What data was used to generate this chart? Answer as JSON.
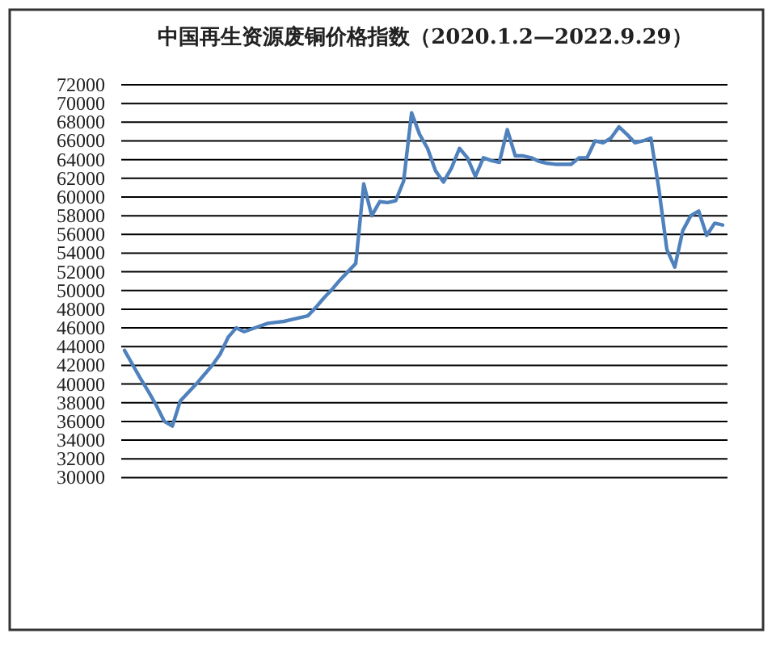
{
  "chart_data": {
    "type": "line",
    "title": "中国再生资源废铜价格指数（2020.1.2—2022.9.29）",
    "categories": [
      null,
      null,
      null,
      null,
      null,
      null,
      null,
      null,
      null,
      null,
      null,
      null,
      null,
      null,
      null,
      null,
      null,
      null,
      null,
      null,
      null,
      null,
      null,
      null,
      null,
      null,
      null,
      null,
      null,
      null,
      null,
      null,
      null,
      null,
      null,
      null,
      null,
      null,
      null,
      null,
      null,
      null,
      null,
      null,
      null,
      null,
      null,
      null,
      null,
      null,
      null,
      null,
      null,
      null,
      null,
      null,
      null,
      null,
      null,
      null,
      null,
      null,
      null,
      null,
      null,
      null,
      null,
      null,
      null,
      null,
      null,
      null,
      null,
      null,
      null,
      null
    ],
    "values": [
      43600,
      42100,
      40600,
      39200,
      37700,
      36000,
      35500,
      38200,
      39100,
      40000,
      41000,
      42000,
      43200,
      45000,
      46000,
      45600,
      45900,
      46200,
      46500,
      46600,
      46700,
      46900,
      47100,
      47300,
      48200,
      49200,
      50100,
      51100,
      52000,
      52900,
      61400,
      58000,
      59500,
      59400,
      59600,
      61700,
      69000,
      66700,
      65200,
      62800,
      61600,
      63100,
      65200,
      64200,
      62200,
      64200,
      63900,
      63700,
      67200,
      64400,
      64400,
      64200,
      63800,
      63600,
      63500,
      63500,
      63500,
      64200,
      64200,
      66000,
      65800,
      66300,
      67500,
      66700,
      65800,
      66000,
      66300,
      60900,
      54400,
      52500,
      56400,
      58000,
      58500,
      55900,
      57200,
      57000
    ],
    "color": "#4f81bd",
    "ylim": [
      30000,
      72000
    ],
    "yticks": [
      30000,
      32000,
      34000,
      36000,
      38000,
      40000,
      42000,
      44000,
      46000,
      48000,
      50000,
      52000,
      54000,
      56000,
      58000,
      60000,
      62000,
      64000,
      66000,
      68000,
      70000,
      72000
    ],
    "grid": "y",
    "tick_labels": "y"
  }
}
